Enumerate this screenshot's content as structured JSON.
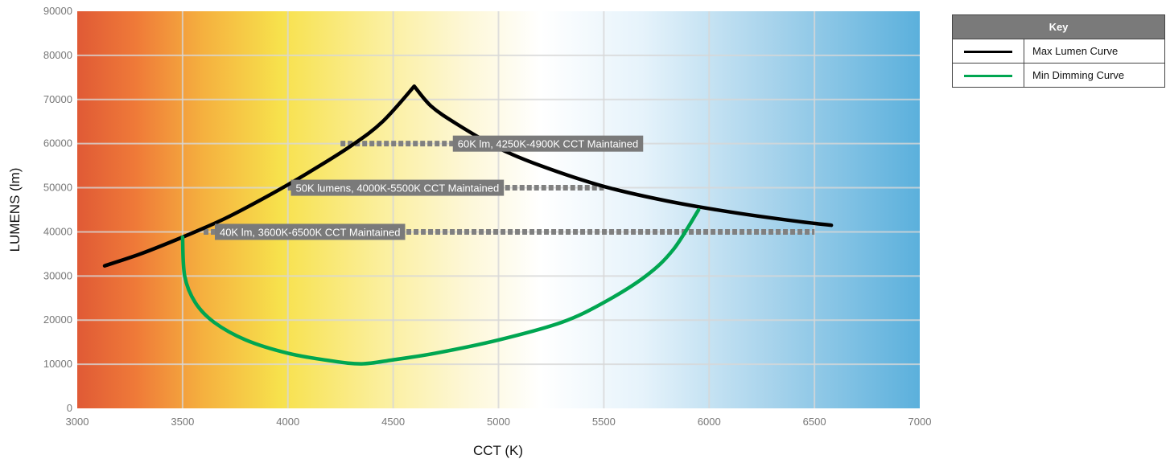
{
  "chart_data": {
    "type": "line",
    "title": "",
    "xlabel": "CCT (K)",
    "ylabel": "LUMENS (lm)",
    "xlim": [
      3000,
      7000
    ],
    "ylim": [
      0,
      90000
    ],
    "x_ticks": [
      "3000",
      "3500",
      "4000",
      "4500",
      "5000",
      "5500",
      "6000",
      "6500",
      "7000"
    ],
    "y_ticks": [
      "0",
      "10000",
      "20000",
      "30000",
      "40000",
      "50000",
      "60000",
      "70000",
      "80000",
      "90000"
    ],
    "grid": true,
    "background": "CCT color-temperature gradient (red-orange at 3000K through yellow and white to blue at 7000K)",
    "series": [
      {
        "name": "Max Lumen Curve",
        "color": "#000000",
        "points": [
          [
            3130,
            32300
          ],
          [
            3300,
            35000
          ],
          [
            3500,
            38800
          ],
          [
            3700,
            43000
          ],
          [
            3900,
            48000
          ],
          [
            4100,
            53500
          ],
          [
            4300,
            59500
          ],
          [
            4450,
            65000
          ],
          [
            4600,
            73000
          ],
          [
            4680,
            68500
          ],
          [
            4800,
            64500
          ],
          [
            5000,
            59000
          ],
          [
            5200,
            55000
          ],
          [
            5500,
            50300
          ],
          [
            5800,
            47000
          ],
          [
            6100,
            44500
          ],
          [
            6400,
            42500
          ],
          [
            6580,
            41500
          ]
        ]
      },
      {
        "name": "Min Dimming Curve",
        "color": "#00a651",
        "points": [
          [
            3500,
            38800
          ],
          [
            3510,
            30000
          ],
          [
            3560,
            24000
          ],
          [
            3650,
            19500
          ],
          [
            3800,
            15500
          ],
          [
            4000,
            12500
          ],
          [
            4200,
            10800
          ],
          [
            4350,
            10100
          ],
          [
            4500,
            11000
          ],
          [
            4700,
            12500
          ],
          [
            5000,
            15500
          ],
          [
            5300,
            19500
          ],
          [
            5500,
            24000
          ],
          [
            5700,
            30000
          ],
          [
            5830,
            36000
          ],
          [
            5950,
            45000
          ]
        ]
      }
    ],
    "annotations": [
      {
        "text": "60K lm, 4250K-4900K CCT Maintained",
        "value": 60000,
        "x_start": 4250,
        "x_end": 4900
      },
      {
        "text": "50K lumens, 4000K-5500K CCT Maintained",
        "value": 50000,
        "x_start": 4000,
        "x_end": 5500
      },
      {
        "text": "40K lm, 3600K-6500K CCT Maintained",
        "value": 40000,
        "x_start": 3600,
        "x_end": 6500
      }
    ],
    "legend": {
      "title": "Key",
      "placement": "top-right, outside plot",
      "entries": [
        "Max Lumen Curve",
        "Min Dimming Curve"
      ]
    }
  },
  "colors": {
    "max_curve": "#000000",
    "min_curve": "#00a651",
    "dotted_line": "#808080",
    "annotation_bg": "#7a7a7a",
    "grid": "#d8d8d8"
  }
}
